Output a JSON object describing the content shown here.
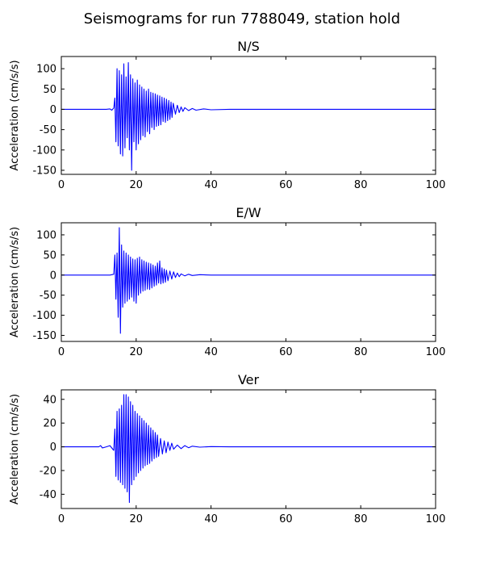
{
  "figure": {
    "title": "Seismograms for run 7788049, station hold"
  },
  "chart_data": [
    {
      "type": "line",
      "title": "N/S",
      "xlabel": "",
      "ylabel": "Acceleration (cm/s/s)",
      "xlim": [
        0,
        100
      ],
      "ylim": [
        -160,
        130
      ],
      "xticks": [
        0,
        20,
        40,
        60,
        80,
        100
      ],
      "yticks": [
        -150,
        -100,
        -50,
        0,
        50,
        100
      ],
      "grid": false,
      "series": [
        {
          "color": "#0000ff",
          "x": [
            0,
            12,
            13,
            13.5,
            14,
            14.3,
            14.6,
            14.9,
            15.2,
            15.5,
            15.8,
            16.1,
            16.4,
            16.7,
            17.0,
            17.3,
            17.6,
            17.9,
            18.2,
            18.5,
            18.8,
            19.1,
            19.4,
            19.7,
            20.0,
            20.3,
            20.6,
            20.9,
            21.2,
            21.5,
            21.8,
            22.1,
            22.4,
            22.7,
            23.0,
            23.3,
            23.6,
            23.9,
            24.2,
            24.5,
            24.8,
            25.1,
            25.4,
            25.7,
            26.0,
            26.3,
            26.6,
            26.9,
            27.2,
            27.5,
            27.8,
            28.1,
            28.4,
            28.7,
            29.0,
            29.3,
            29.6,
            29.9,
            30.5,
            31.0,
            31.5,
            32.0,
            32.5,
            33.0,
            34.0,
            35.0,
            36.0,
            38.0,
            40.0,
            45.0,
            100
          ],
          "y": [
            0,
            0,
            1,
            -2,
            3,
            28,
            -80,
            100,
            -90,
            95,
            -110,
            85,
            -115,
            112,
            -95,
            80,
            -70,
            115,
            -100,
            85,
            -150,
            75,
            -80,
            65,
            -100,
            72,
            -85,
            60,
            -75,
            55,
            -65,
            50,
            -68,
            45,
            -55,
            50,
            -60,
            42,
            -45,
            40,
            -50,
            38,
            -42,
            35,
            -40,
            33,
            -38,
            30,
            -30,
            28,
            -32,
            25,
            -28,
            22,
            -25,
            18,
            -20,
            15,
            -12,
            10,
            -8,
            6,
            -5,
            4,
            -3,
            2,
            -2,
            1,
            -1,
            0,
            0
          ]
        }
      ]
    },
    {
      "type": "line",
      "title": "E/W",
      "xlabel": "",
      "ylabel": "Acceleration (cm/s/s)",
      "xlim": [
        0,
        100
      ],
      "ylim": [
        -165,
        130
      ],
      "xticks": [
        0,
        20,
        40,
        60,
        80,
        100
      ],
      "yticks": [
        -150,
        -100,
        -50,
        0,
        50,
        100
      ],
      "grid": false,
      "series": [
        {
          "color": "#0000ff",
          "x": [
            0,
            13,
            14,
            14.3,
            14.6,
            14.9,
            15.2,
            15.5,
            15.8,
            16.1,
            16.4,
            16.7,
            17.0,
            17.3,
            17.6,
            17.9,
            18.2,
            18.5,
            18.8,
            19.1,
            19.4,
            19.7,
            20.0,
            20.3,
            20.6,
            20.9,
            21.2,
            21.5,
            21.8,
            22.1,
            22.4,
            22.7,
            23.0,
            23.3,
            23.6,
            23.9,
            24.2,
            24.5,
            24.8,
            25.1,
            25.4,
            25.7,
            26.0,
            26.3,
            26.6,
            26.9,
            27.2,
            27.5,
            27.8,
            28.1,
            28.5,
            29.0,
            29.5,
            30.0,
            30.5,
            31.0,
            31.5,
            32.0,
            33.0,
            34.0,
            35.0,
            37.0,
            40.0,
            45.0,
            100
          ],
          "y": [
            0,
            0,
            2,
            50,
            -60,
            55,
            -105,
            118,
            -145,
            75,
            -80,
            60,
            -70,
            55,
            -65,
            50,
            -60,
            45,
            -55,
            40,
            -65,
            38,
            -70,
            42,
            -50,
            45,
            -45,
            38,
            -40,
            35,
            -38,
            32,
            -35,
            30,
            -36,
            28,
            -32,
            25,
            -28,
            22,
            -25,
            30,
            -20,
            35,
            -22,
            18,
            -20,
            15,
            -18,
            12,
            -14,
            10,
            -10,
            8,
            -6,
            5,
            -4,
            3,
            -2,
            2,
            -1,
            1,
            0,
            0,
            0
          ]
        }
      ]
    },
    {
      "type": "line",
      "title": "Ver",
      "xlabel": "",
      "ylabel": "Acceleration (cm/s/s)",
      "xlim": [
        0,
        100
      ],
      "ylim": [
        -52,
        48
      ],
      "xticks": [
        0,
        20,
        40,
        60,
        80,
        100
      ],
      "yticks": [
        -40,
        -20,
        0,
        20,
        40
      ],
      "grid": false,
      "series": [
        {
          "color": "#0000ff",
          "x": [
            0,
            10,
            10.5,
            11,
            12,
            13,
            14,
            14.3,
            14.6,
            14.9,
            15.2,
            15.5,
            15.8,
            16.1,
            16.4,
            16.7,
            17.0,
            17.3,
            17.6,
            17.9,
            18.2,
            18.5,
            18.8,
            19.1,
            19.4,
            19.7,
            20.0,
            20.3,
            20.6,
            20.9,
            21.2,
            21.5,
            21.8,
            22.1,
            22.4,
            22.7,
            23.0,
            23.3,
            23.6,
            23.9,
            24.2,
            24.5,
            24.8,
            25.1,
            25.4,
            25.7,
            26.0,
            26.5,
            27.0,
            27.5,
            28.0,
            28.5,
            29.0,
            29.5,
            30.0,
            31.0,
            32.0,
            33.0,
            34.0,
            35.0,
            37.0,
            40.0,
            45.0,
            100
          ],
          "y": [
            0,
            0,
            1,
            -1,
            0,
            1,
            -3,
            15,
            -25,
            30,
            -28,
            32,
            -30,
            35,
            -32,
            44,
            -35,
            44,
            -38,
            42,
            -47,
            38,
            -32,
            35,
            -28,
            30,
            -25,
            28,
            -22,
            26,
            -20,
            24,
            -18,
            22,
            -16,
            20,
            -15,
            18,
            -14,
            16,
            -12,
            14,
            -10,
            12,
            -9,
            10,
            -8,
            7,
            -6,
            5,
            -5,
            4,
            -3,
            3,
            -2,
            1.5,
            -1.5,
            1,
            -0.8,
            0.5,
            -0.3,
            0.2,
            0,
            0
          ]
        }
      ]
    }
  ]
}
